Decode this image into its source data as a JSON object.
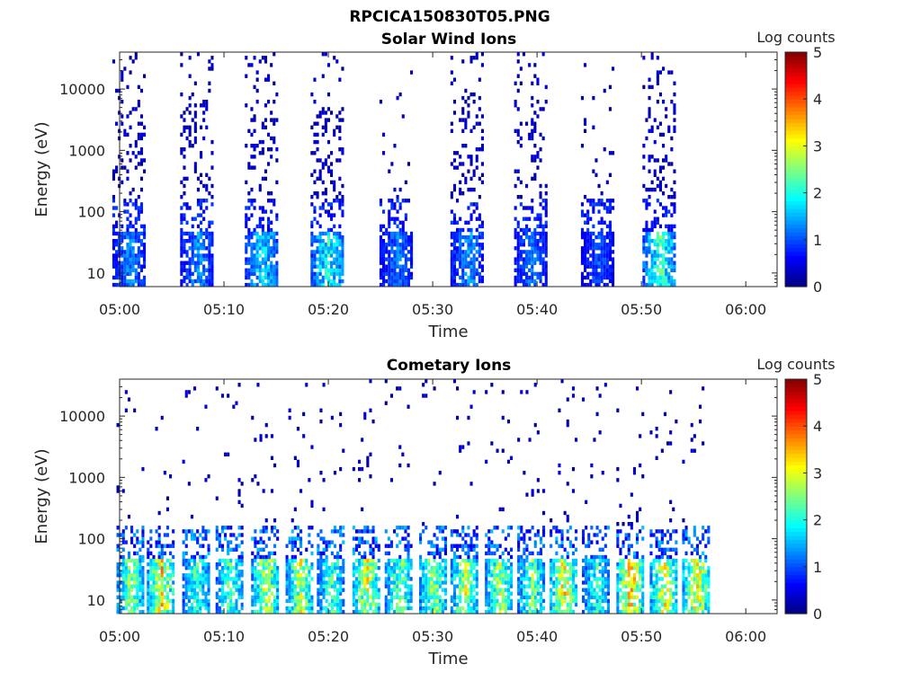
{
  "figure": {
    "title": "RPCICA150830T05.PNG"
  },
  "chart_data": [
    {
      "type": "heatmap",
      "title": "Solar Wind Ions",
      "xlabel": "Time",
      "ylabel": "Energy (eV)",
      "x_ticks": [
        "05:00",
        "05:10",
        "05:20",
        "05:30",
        "05:40",
        "05:50",
        "06:00"
      ],
      "x_range_minutes": [
        0,
        63
      ],
      "y_scale": "log",
      "y_range_eV": [
        6,
        40000
      ],
      "y_ticks": [
        "10",
        "100",
        "1000",
        "10000"
      ],
      "colorbar": {
        "label": "Log counts",
        "range": [
          0,
          5
        ],
        "ticks": [
          "0",
          "1",
          "2",
          "3",
          "4",
          "5"
        ]
      },
      "sweeps": [
        {
          "center_min": 0.9,
          "low_counts_peak": 1.5
        },
        {
          "center_min": 7.4,
          "low_counts_peak": 1.5
        },
        {
          "center_min": 13.6,
          "low_counts_peak": 2.0
        },
        {
          "center_min": 19.9,
          "low_counts_peak": 2.3
        },
        {
          "center_min": 26.5,
          "low_counts_peak": 1.4
        },
        {
          "center_min": 33.3,
          "low_counts_peak": 1.6
        },
        {
          "center_min": 39.4,
          "low_counts_peak": 1.4
        },
        {
          "center_min": 45.8,
          "low_counts_peak": 1.2
        },
        {
          "center_min": 51.7,
          "low_counts_peak": 2.5
        }
      ]
    },
    {
      "type": "heatmap",
      "title": "Cometary Ions",
      "xlabel": "Time",
      "ylabel": "Energy (eV)",
      "x_ticks": [
        "05:00",
        "05:10",
        "05:20",
        "05:30",
        "05:40",
        "05:50",
        "06:00"
      ],
      "x_range_minutes": [
        0,
        63
      ],
      "y_scale": "log",
      "y_range_eV": [
        6,
        40000
      ],
      "y_ticks": [
        "10",
        "100",
        "1000",
        "10000"
      ],
      "colorbar": {
        "label": "Log counts",
        "range": [
          0,
          5
        ],
        "ticks": [
          "0",
          "1",
          "2",
          "3",
          "4",
          "5"
        ]
      },
      "sweeps": [
        {
          "center_min": 1.0,
          "low_counts_peak": 3.0
        },
        {
          "center_min": 3.9,
          "low_counts_peak": 3.6
        },
        {
          "center_min": 7.3,
          "low_counts_peak": 2.5
        },
        {
          "center_min": 10.5,
          "low_counts_peak": 2.6
        },
        {
          "center_min": 13.9,
          "low_counts_peak": 3.3
        },
        {
          "center_min": 17.2,
          "low_counts_peak": 3.2
        },
        {
          "center_min": 20.2,
          "low_counts_peak": 2.6
        },
        {
          "center_min": 23.6,
          "low_counts_peak": 3.4
        },
        {
          "center_min": 26.7,
          "low_counts_peak": 2.9
        },
        {
          "center_min": 30.0,
          "low_counts_peak": 3.1
        },
        {
          "center_min": 33.0,
          "low_counts_peak": 3.2
        },
        {
          "center_min": 36.3,
          "low_counts_peak": 3.1
        },
        {
          "center_min": 39.4,
          "low_counts_peak": 2.8
        },
        {
          "center_min": 42.5,
          "low_counts_peak": 3.6
        },
        {
          "center_min": 45.6,
          "low_counts_peak": 2.4
        },
        {
          "center_min": 48.9,
          "low_counts_peak": 3.8
        },
        {
          "center_min": 52.1,
          "low_counts_peak": 3.5
        },
        {
          "center_min": 55.2,
          "low_counts_peak": 3.6
        }
      ]
    }
  ]
}
